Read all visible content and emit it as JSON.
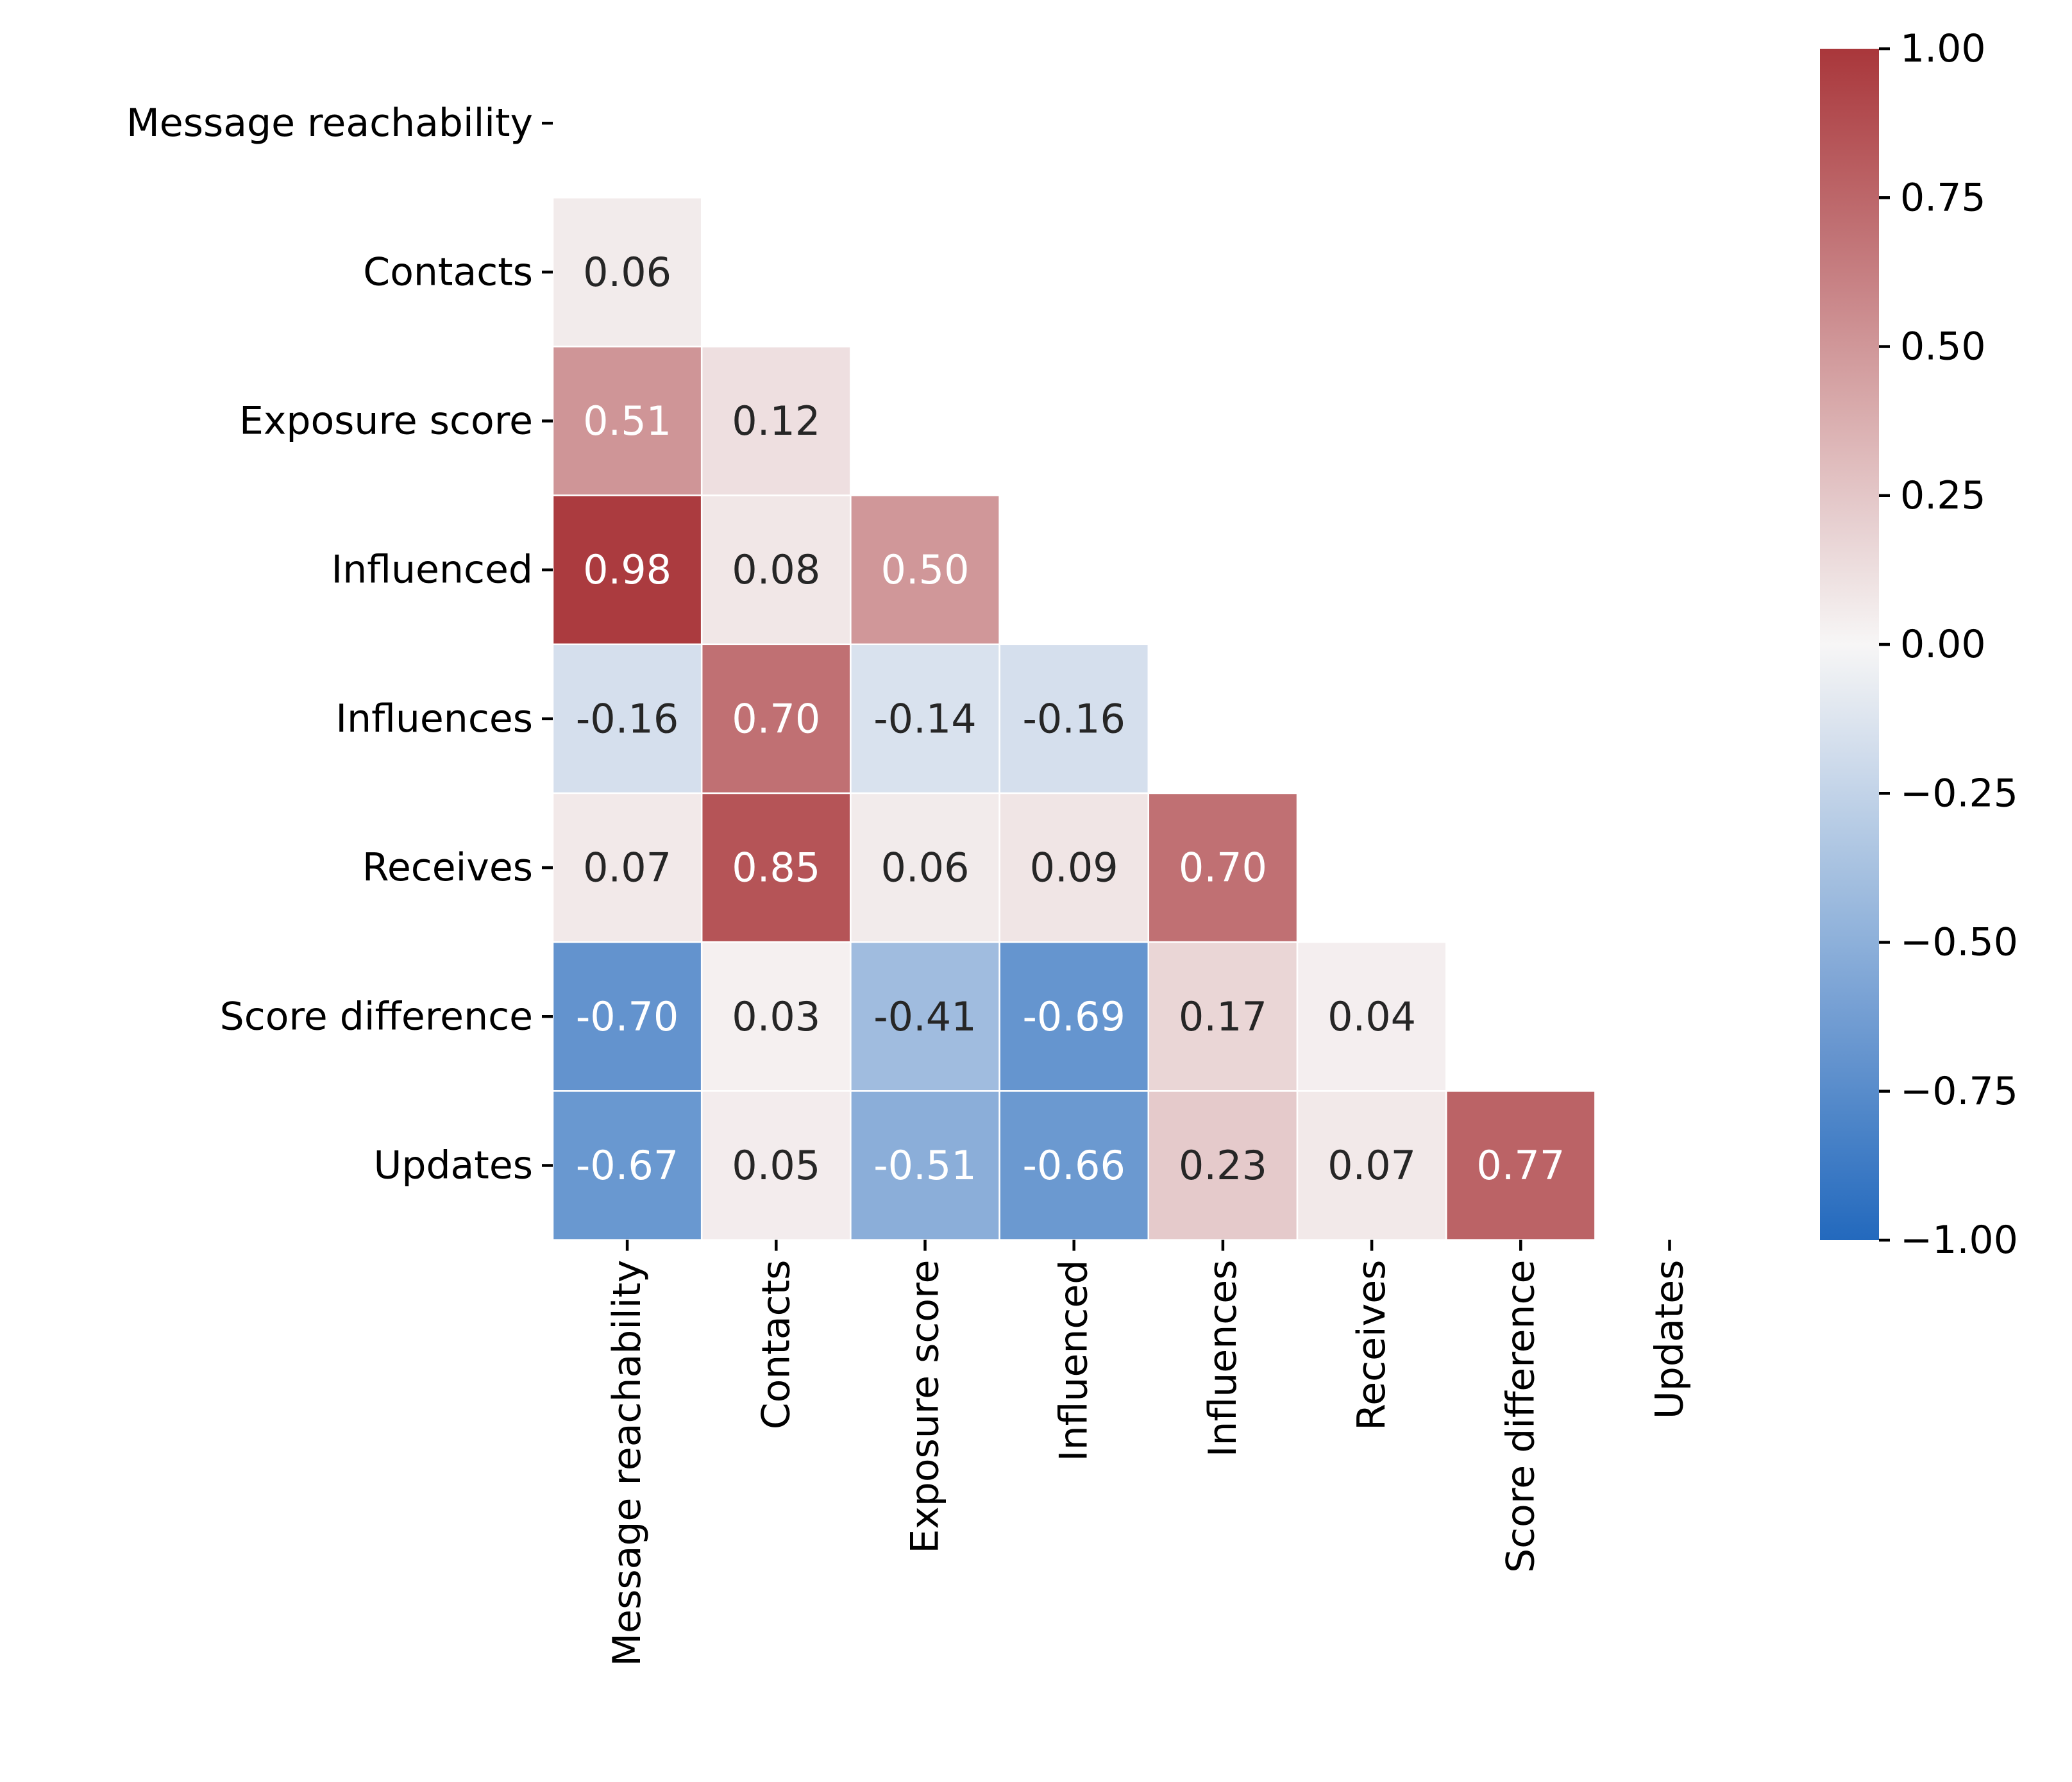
{
  "chart_data": {
    "type": "heatmap",
    "title": "",
    "xlabel": "",
    "ylabel": "",
    "variables": [
      "Message reachability",
      "Contacts",
      "Exposure score",
      "Influenced",
      "Influences",
      "Receives",
      "Score difference",
      "Updates"
    ],
    "mask": "upper-triangle-including-diagonal",
    "matrix": [
      [
        null,
        null,
        null,
        null,
        null,
        null,
        null,
        null
      ],
      [
        0.06,
        null,
        null,
        null,
        null,
        null,
        null,
        null
      ],
      [
        0.51,
        0.12,
        null,
        null,
        null,
        null,
        null,
        null
      ],
      [
        0.98,
        0.08,
        0.5,
        null,
        null,
        null,
        null,
        null
      ],
      [
        -0.16,
        0.7,
        -0.14,
        -0.16,
        null,
        null,
        null,
        null
      ],
      [
        0.07,
        0.85,
        0.06,
        0.09,
        0.7,
        null,
        null,
        null
      ],
      [
        -0.7,
        0.03,
        -0.41,
        -0.69,
        0.17,
        0.04,
        null,
        null
      ],
      [
        -0.67,
        0.05,
        -0.51,
        -0.66,
        0.23,
        0.07,
        0.77,
        null
      ]
    ],
    "cell_labels": [
      [
        null,
        null,
        null,
        null,
        null,
        null,
        null,
        null
      ],
      [
        "0.06",
        null,
        null,
        null,
        null,
        null,
        null,
        null
      ],
      [
        "0.51",
        "0.12",
        null,
        null,
        null,
        null,
        null,
        null
      ],
      [
        "0.98",
        "0.08",
        "0.50",
        null,
        null,
        null,
        null,
        null
      ],
      [
        "-0.16",
        "0.70",
        "-0.14",
        "-0.16",
        null,
        null,
        null,
        null
      ],
      [
        "0.07",
        "0.85",
        "0.06",
        "0.09",
        "0.70",
        null,
        null,
        null
      ],
      [
        "-0.70",
        "0.03",
        "-0.41",
        "-0.69",
        "0.17",
        "0.04",
        null,
        null
      ],
      [
        "-0.67",
        "0.05",
        "-0.51",
        "-0.66",
        "0.23",
        "0.07",
        "0.77",
        null
      ]
    ],
    "colormap": {
      "name": "vlag",
      "low_color": "#2369bd",
      "mid_color": "#f7f6f6",
      "high_color": "#a9373b",
      "vmin": -1.0,
      "vmax": 1.0
    },
    "colorbar": {
      "ticks": [
        1.0,
        0.75,
        0.5,
        0.25,
        0.0,
        -0.25,
        -0.5,
        -0.75,
        -1.0
      ],
      "tick_labels": [
        "1.00",
        "0.75",
        "0.50",
        "0.25",
        "0.00",
        "−0.25",
        "−0.50",
        "−0.75",
        "−1.00"
      ],
      "placement": "right"
    },
    "grid": false,
    "cell_border_color": "#ffffff",
    "dark_text_color": "#262626",
    "light_text_color": "#ffffff"
  }
}
